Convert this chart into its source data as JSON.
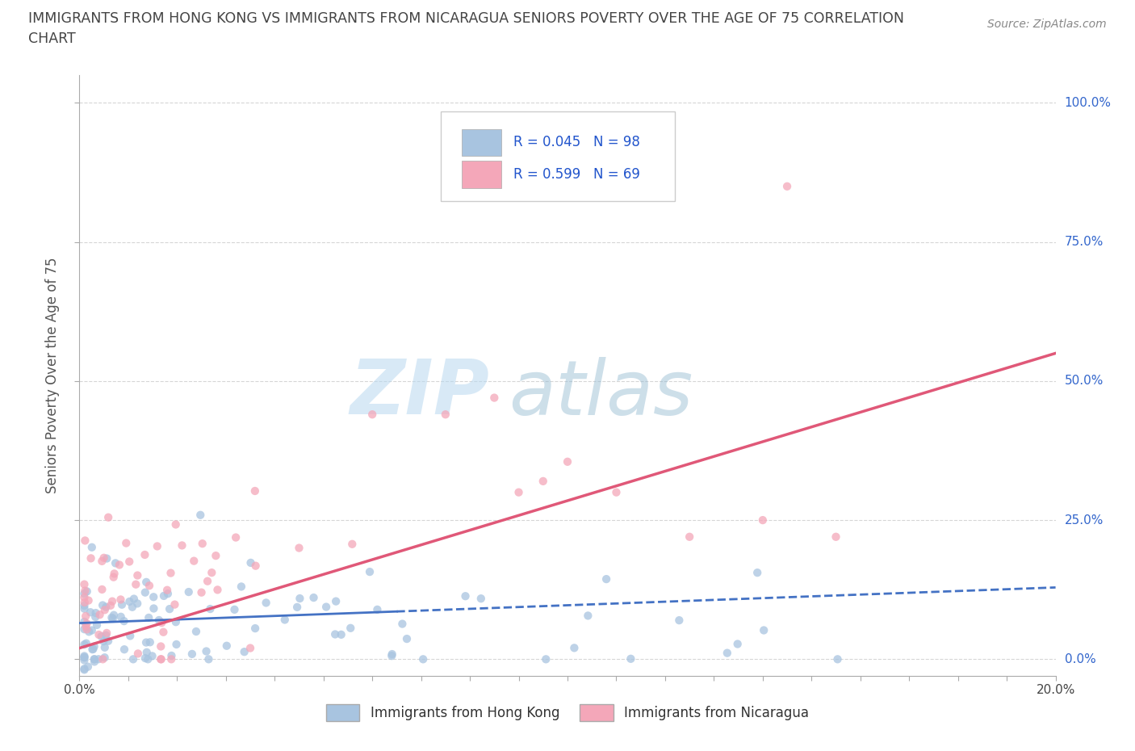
{
  "title_line1": "IMMIGRANTS FROM HONG KONG VS IMMIGRANTS FROM NICARAGUA SENIORS POVERTY OVER THE AGE OF 75 CORRELATION",
  "title_line2": "CHART",
  "source": "Source: ZipAtlas.com",
  "ylabel": "Seniors Poverty Over the Age of 75",
  "xlim": [
    0.0,
    0.2
  ],
  "ylim": [
    -0.03,
    1.05
  ],
  "ytick_labels": [
    "0.0%",
    "25.0%",
    "50.0%",
    "75.0%",
    "100.0%"
  ],
  "ytick_values": [
    0.0,
    0.25,
    0.5,
    0.75,
    1.0
  ],
  "xtick_labels": [
    "0.0%",
    "",
    "",
    "",
    "",
    "",
    "",
    "",
    "",
    "",
    "",
    "",
    "",
    "",
    "",
    "",
    "",
    "",
    "",
    "",
    "20.0%"
  ],
  "xtick_values": [
    0.0,
    0.01,
    0.02,
    0.03,
    0.04,
    0.05,
    0.06,
    0.07,
    0.08,
    0.09,
    0.1,
    0.11,
    0.12,
    0.13,
    0.14,
    0.15,
    0.16,
    0.17,
    0.18,
    0.19,
    0.2
  ],
  "legend_labels": [
    "Immigrants from Hong Kong",
    "Immigrants from Nicaragua"
  ],
  "R_hk": 0.045,
  "N_hk": 98,
  "R_nic": 0.599,
  "N_nic": 69,
  "hk_color": "#a8c4e0",
  "hk_line_color": "#4472c4",
  "nic_color": "#f4a7b9",
  "nic_line_color": "#e05878",
  "watermark_zip": "ZIP",
  "watermark_atlas": "atlas",
  "background_color": "#ffffff",
  "grid_color": "#cccccc",
  "title_color": "#444444",
  "legend_text_color": "#2255cc",
  "hk_line_x": [
    0.0,
    0.065,
    0.2
  ],
  "hk_line_y": [
    0.065,
    0.075,
    0.13
  ],
  "nic_line_x": [
    0.0,
    0.2
  ],
  "nic_line_y": [
    0.02,
    0.55
  ]
}
